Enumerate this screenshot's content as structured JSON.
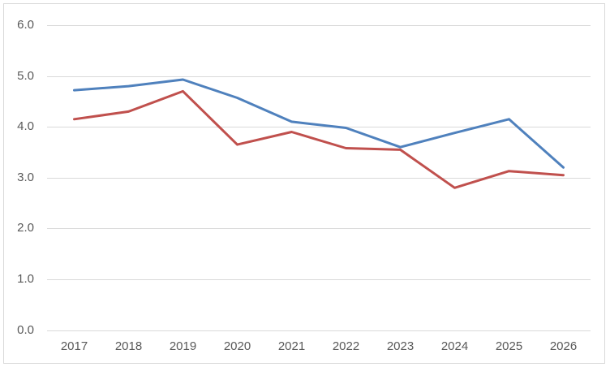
{
  "chart": {
    "background_color": "#ffffff",
    "frame_border_color": "#d9d9d9",
    "gridline_color": "#d9d9d9",
    "tick_label_color": "#595959",
    "legend": "none",
    "title": ""
  },
  "chart_data": {
    "type": "line",
    "title": "",
    "xlabel": "",
    "ylabel": "",
    "categories": [
      "2017",
      "2018",
      "2019",
      "2020",
      "2021",
      "2022",
      "2023",
      "2024",
      "2025",
      "2026"
    ],
    "series": [
      {
        "name": "red-series",
        "color": "#c0504d",
        "values": [
          4.15,
          4.3,
          4.7,
          3.65,
          3.9,
          3.58,
          3.55,
          2.8,
          3.13,
          3.05
        ]
      },
      {
        "name": "blue-series",
        "color": "#4f81bd",
        "values": [
          4.72,
          4.8,
          4.93,
          4.57,
          4.1,
          3.98,
          3.6,
          3.88,
          4.15,
          3.2
        ]
      }
    ],
    "ylim": [
      0.0,
      6.0
    ],
    "ytick_step": 1.0,
    "ytick_labels": [
      "0.0",
      "1.0",
      "2.0",
      "3.0",
      "4.0",
      "5.0",
      "6.0"
    ],
    "grid": true,
    "legend_position": "none"
  }
}
